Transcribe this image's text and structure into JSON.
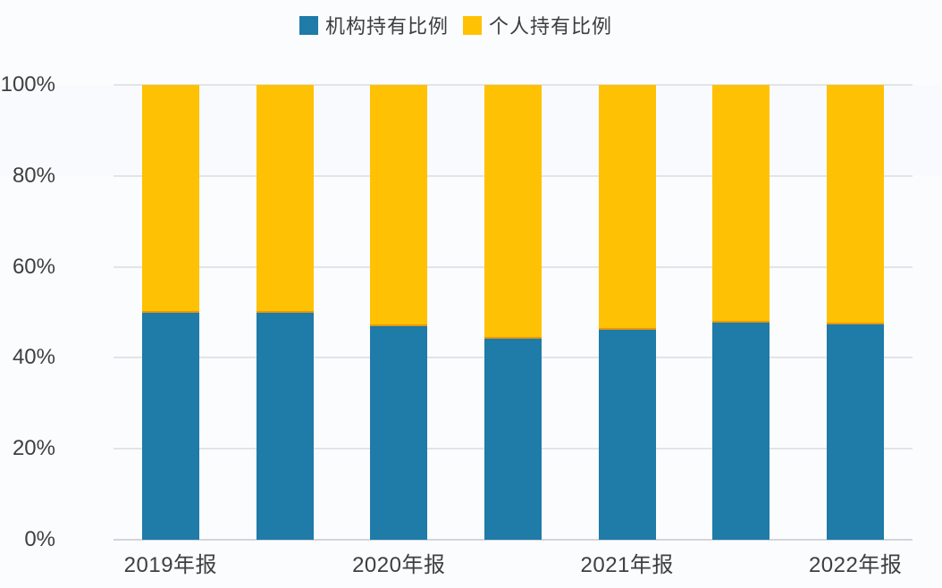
{
  "legend": {
    "items": [
      {
        "label": "机构持有比例",
        "color": "#1f7ba8"
      },
      {
        "label": "个人持有比例",
        "color": "#ffc103"
      }
    ]
  },
  "colors": {
    "institutional_blue": "#1f7ba8",
    "personal_yellow": "#ffc103",
    "gridline": "#e3e4e8",
    "baseline": "#d3d5da",
    "axis_text": "#3f3f3f"
  },
  "chart_data": {
    "type": "bar",
    "stacked": true,
    "title": "",
    "xlabel": "",
    "ylabel": "",
    "ylim": [
      0,
      100
    ],
    "grid": true,
    "legend_position": "top",
    "categories": [
      "2019年报",
      "",
      "2020年报",
      "",
      "2021年报",
      "",
      "2022年报"
    ],
    "series": [
      {
        "name": "机构持有比例",
        "color": "#1f7ba8",
        "values": [
          50.0,
          49.9,
          47.0,
          44.3,
          46.2,
          47.7,
          47.3
        ]
      },
      {
        "name": "个人持有比例",
        "color": "#ffc103",
        "values": [
          50.0,
          50.1,
          53.0,
          55.7,
          53.8,
          52.3,
          52.7
        ]
      }
    ],
    "y_ticks": [
      {
        "label": "0%",
        "value": 0
      },
      {
        "label": "20%",
        "value": 20
      },
      {
        "label": "40%",
        "value": 40
      },
      {
        "label": "60%",
        "value": 60
      },
      {
        "label": "80%",
        "value": 80
      },
      {
        "label": "100%",
        "value": 100
      }
    ]
  }
}
